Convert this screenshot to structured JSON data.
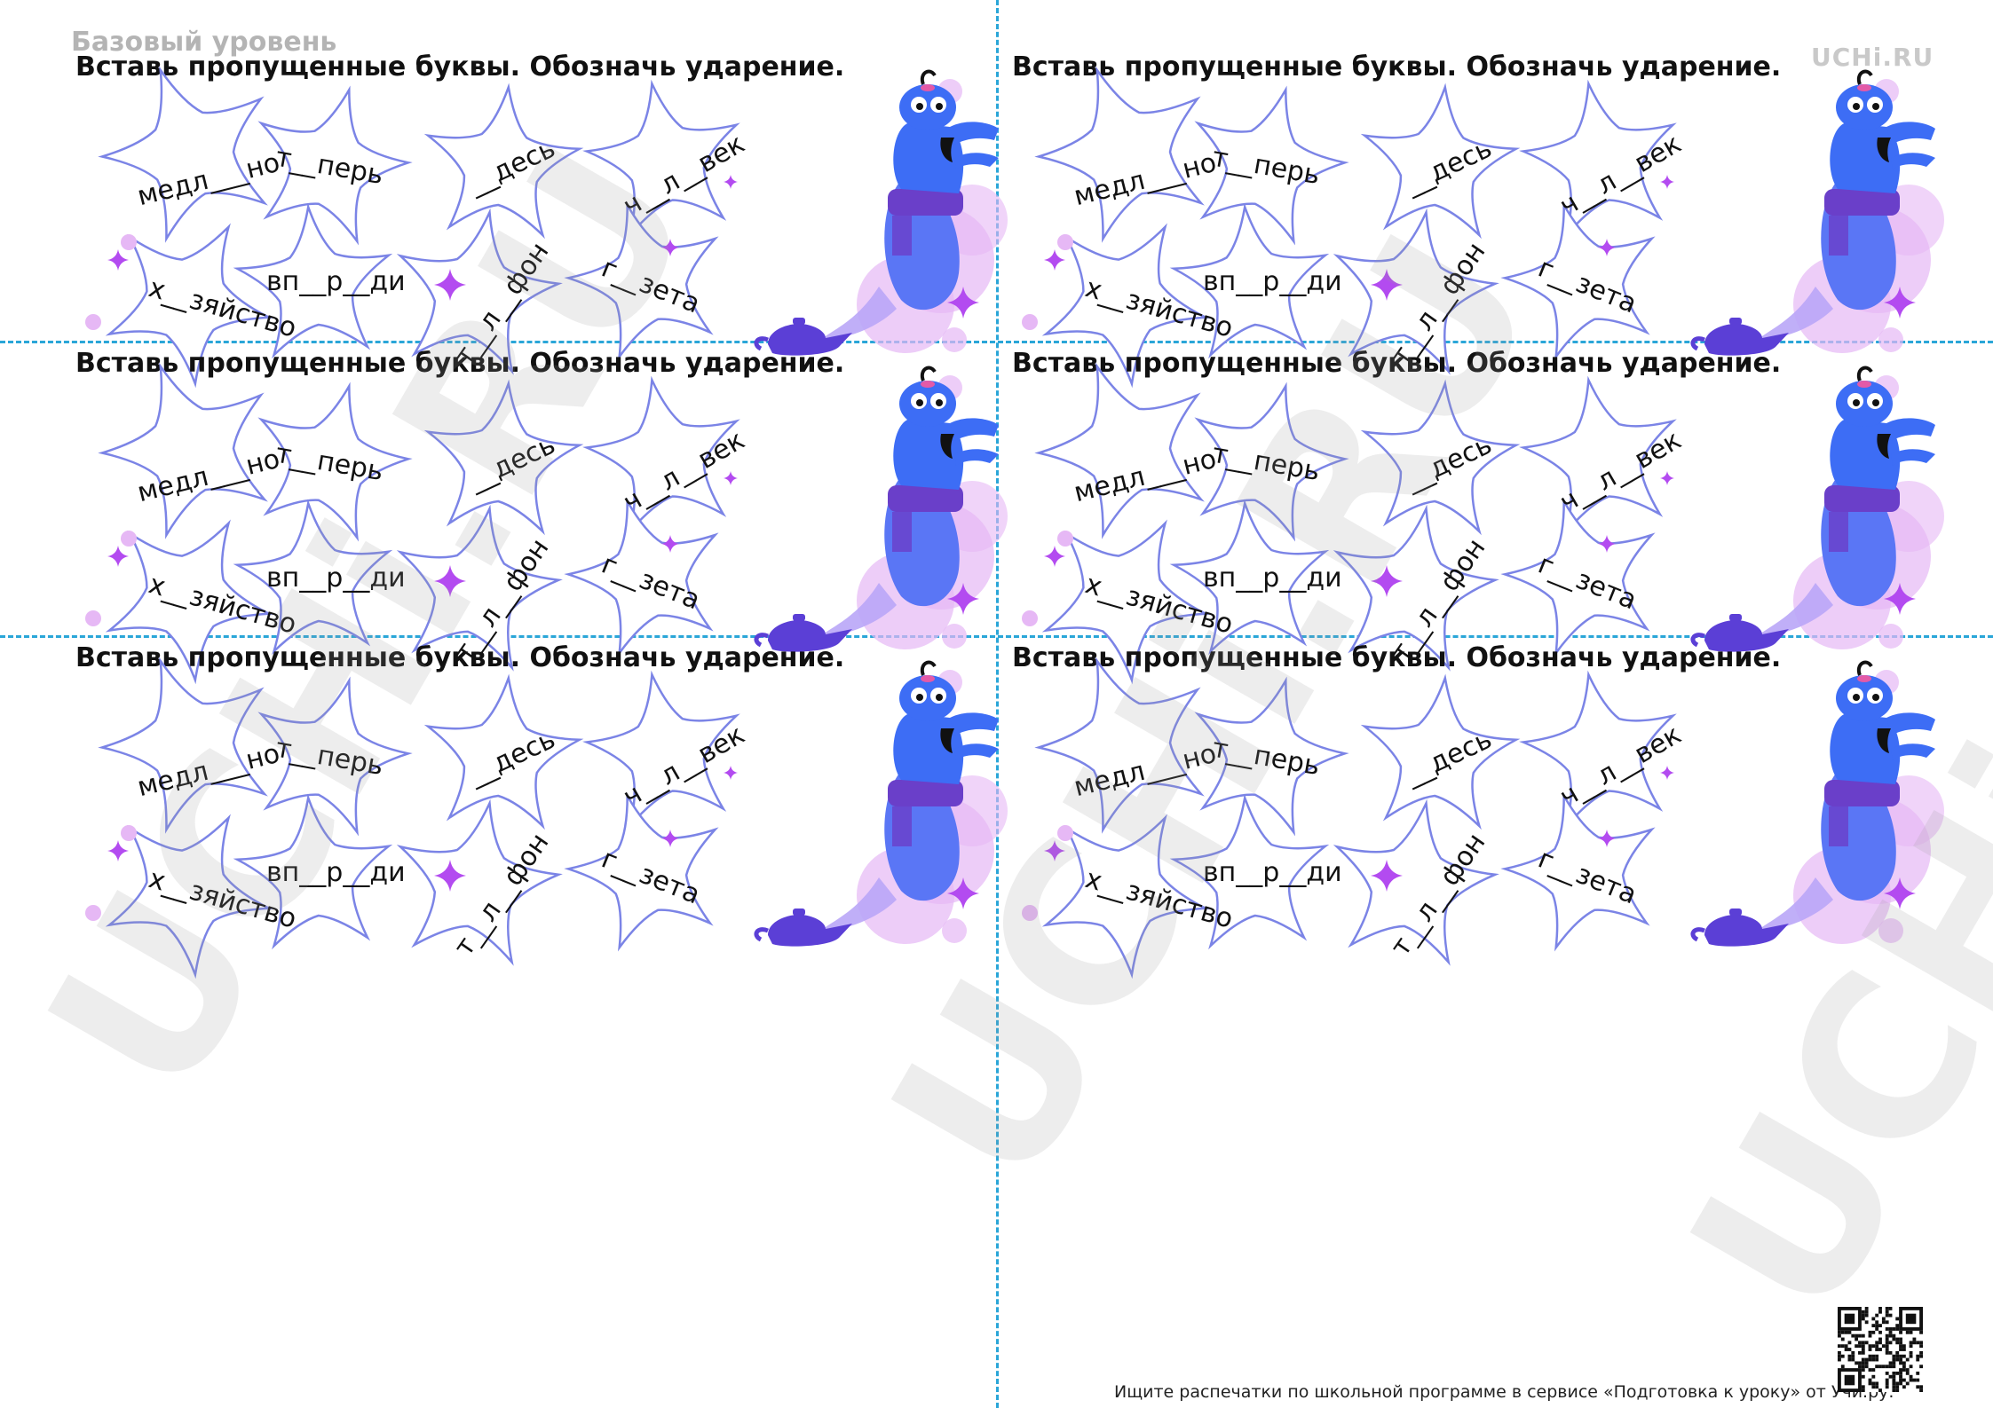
{
  "header": {
    "level": "Базовый уровень",
    "logo": "UCHi.RU"
  },
  "watermark": {
    "text": "UCHi.RU"
  },
  "card": {
    "title": "Вставь пропущенные буквы. Обозначь ударение.",
    "words": [
      "медл___но",
      "т__перь",
      "__десь",
      "ч__л__век",
      "х__зяйство",
      "вп__р__ди",
      "т__л__фон",
      "г__зета"
    ],
    "illustration": [
      "genie-illustration",
      "magic-lamp-icon",
      "sparkle-icon"
    ]
  },
  "colors": {
    "star_outline": "#7b84e6",
    "cut_line": "#2aa6d8",
    "sparkle": "#b34bf0",
    "genie": "#3d6df5",
    "smoke": "#e6b8f5"
  },
  "footer": {
    "text": "Ищите распечатки по школьной программе в сервисе «Подготовка к уроку» от Учи.ру."
  },
  "qr": {
    "icon": "qr-code-icon"
  }
}
